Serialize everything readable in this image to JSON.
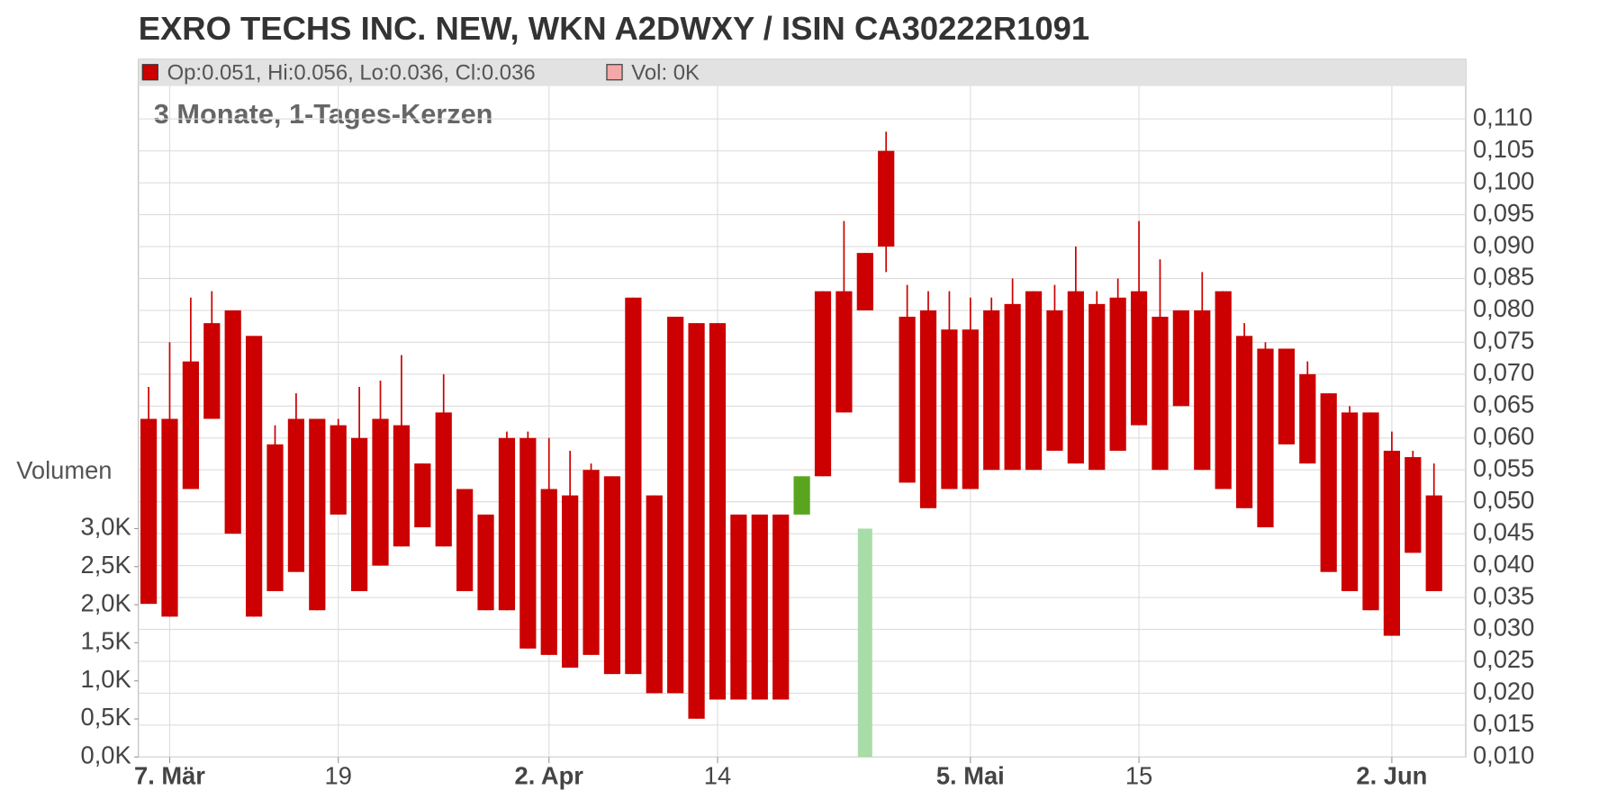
{
  "chart_data": {
    "type": "candlestick",
    "title": "EXRO TECHS INC. NEW, WKN A2DWXY / ISIN CA30222R1091",
    "subtitle": "3 Monate, 1-Tages-Kerzen",
    "legend_items": [
      "Op:0.051, Hi:0.056, Lo:0.036, Cl:0.036",
      "Vol: 0K"
    ],
    "y2_label": "Volumen",
    "categories": [
      null,
      "7. Mär",
      null,
      null,
      null,
      null,
      null,
      null,
      null,
      "19",
      null,
      null,
      null,
      null,
      null,
      null,
      null,
      null,
      null,
      "2. Apr",
      null,
      null,
      null,
      null,
      null,
      null,
      null,
      "14",
      null,
      null,
      null,
      null,
      null,
      null,
      null,
      null,
      null,
      null,
      null,
      "5. Mai",
      null,
      null,
      null,
      null,
      null,
      null,
      null,
      "15",
      null,
      null,
      null,
      null,
      null,
      null,
      null,
      null,
      null,
      null,
      null,
      "2. Jun",
      null,
      null
    ],
    "series": [
      {
        "name": "Kurs",
        "up_color": "#5aa520",
        "down_color": "#cc0000",
        "open": [
          0.063,
          0.063,
          0.072,
          0.078,
          0.08,
          0.076,
          0.059,
          0.063,
          0.063,
          0.062,
          0.06,
          0.063,
          0.062,
          0.056,
          0.064,
          0.052,
          0.048,
          0.06,
          0.06,
          0.052,
          0.051,
          0.055,
          0.054,
          0.082,
          0.051,
          0.079,
          0.078,
          0.078,
          0.048,
          0.048,
          0.048,
          0.048,
          0.083,
          0.083,
          0.089,
          0.105,
          0.079,
          0.08,
          0.077,
          0.077,
          0.08,
          0.081,
          0.083,
          0.08,
          0.083,
          0.081,
          0.082,
          0.083,
          0.079,
          0.08,
          0.08,
          0.083,
          0.076,
          0.074,
          0.074,
          0.07,
          0.067,
          0.064,
          0.064,
          0.058,
          0.057,
          0.051
        ],
        "high": [
          0.068,
          0.075,
          0.082,
          0.083,
          0.08,
          0.076,
          0.062,
          0.067,
          0.063,
          0.063,
          0.068,
          0.069,
          0.073,
          0.056,
          0.07,
          0.052,
          0.048,
          0.061,
          0.061,
          0.06,
          0.058,
          0.056,
          0.054,
          0.082,
          0.051,
          0.079,
          0.078,
          0.078,
          0.048,
          0.048,
          0.048,
          0.054,
          0.083,
          0.094,
          0.089,
          0.108,
          0.084,
          0.083,
          0.083,
          0.082,
          0.082,
          0.085,
          0.083,
          0.084,
          0.09,
          0.083,
          0.085,
          0.094,
          0.088,
          0.08,
          0.086,
          0.083,
          0.078,
          0.075,
          0.074,
          0.072,
          0.067,
          0.065,
          0.064,
          0.061,
          0.058,
          0.056
        ],
        "low": [
          0.034,
          0.032,
          0.052,
          0.063,
          0.045,
          0.032,
          0.036,
          0.039,
          0.033,
          0.048,
          0.036,
          0.04,
          0.043,
          0.046,
          0.043,
          0.036,
          0.033,
          0.033,
          0.027,
          0.026,
          0.024,
          0.026,
          0.023,
          0.023,
          0.02,
          0.02,
          0.016,
          0.019,
          0.019,
          0.019,
          0.019,
          0.048,
          0.054,
          0.064,
          0.08,
          0.086,
          0.053,
          0.049,
          0.052,
          0.052,
          0.055,
          0.055,
          0.055,
          0.058,
          0.056,
          0.055,
          0.058,
          0.062,
          0.055,
          0.065,
          0.055,
          0.052,
          0.049,
          0.046,
          0.059,
          0.056,
          0.039,
          0.036,
          0.033,
          0.029,
          0.042,
          0.036
        ],
        "close": [
          0.034,
          0.032,
          0.052,
          0.063,
          0.045,
          0.032,
          0.036,
          0.039,
          0.033,
          0.048,
          0.036,
          0.04,
          0.043,
          0.046,
          0.043,
          0.036,
          0.033,
          0.033,
          0.027,
          0.026,
          0.024,
          0.026,
          0.023,
          0.023,
          0.02,
          0.02,
          0.016,
          0.019,
          0.019,
          0.019,
          0.019,
          0.054,
          0.054,
          0.064,
          0.08,
          0.09,
          0.053,
          0.049,
          0.052,
          0.052,
          0.055,
          0.055,
          0.055,
          0.058,
          0.056,
          0.055,
          0.058,
          0.062,
          0.055,
          0.065,
          0.055,
          0.052,
          0.049,
          0.046,
          0.059,
          0.056,
          0.039,
          0.036,
          0.033,
          0.029,
          0.042,
          0.036
        ]
      },
      {
        "name": "Volumen",
        "axis": "y2",
        "color": "#a8dca8",
        "values": [
          0,
          0,
          0,
          0,
          0,
          0,
          0,
          0,
          0,
          0,
          0,
          0,
          0,
          0,
          0,
          0,
          0,
          0,
          0,
          0,
          0,
          0,
          0,
          0,
          0,
          0,
          0,
          0,
          0,
          0,
          0,
          0,
          0,
          0,
          3.0,
          0,
          0,
          0,
          0,
          0,
          0,
          0,
          0,
          0,
          0,
          0,
          0,
          0,
          0,
          0,
          0,
          0,
          0,
          0,
          0,
          0,
          0,
          0,
          0,
          0,
          0,
          0
        ]
      }
    ],
    "legend_colors": [
      "#cc0000",
      "#f4a8a8"
    ],
    "ylim": [
      0.01,
      0.115
    ],
    "yticks": [
      {
        "value": 0.01,
        "label": "0,010"
      },
      {
        "value": 0.015,
        "label": "0,015"
      },
      {
        "value": 0.02,
        "label": "0,020"
      },
      {
        "value": 0.025,
        "label": "0,025"
      },
      {
        "value": 0.03,
        "label": "0,030"
      },
      {
        "value": 0.035,
        "label": "0,035"
      },
      {
        "value": 0.04,
        "label": "0,040"
      },
      {
        "value": 0.045,
        "label": "0,045"
      },
      {
        "value": 0.05,
        "label": "0,050"
      },
      {
        "value": 0.055,
        "label": "0,055"
      },
      {
        "value": 0.06,
        "label": "0,060"
      },
      {
        "value": 0.065,
        "label": "0,065"
      },
      {
        "value": 0.07,
        "label": "0,070"
      },
      {
        "value": 0.075,
        "label": "0,075"
      },
      {
        "value": 0.08,
        "label": "0,080"
      },
      {
        "value": 0.085,
        "label": "0,085"
      },
      {
        "value": 0.09,
        "label": "0,090"
      },
      {
        "value": 0.095,
        "label": "0,095"
      },
      {
        "value": 0.1,
        "label": "0,100"
      },
      {
        "value": 0.105,
        "label": "0,105"
      },
      {
        "value": 0.11,
        "label": "0,110"
      }
    ],
    "y2lim": [
      0,
      3.0
    ],
    "y2ticks": [
      {
        "value": 0,
        "label": "0,0K"
      },
      {
        "value": 0.5,
        "label": "0,5K"
      },
      {
        "value": 1.0,
        "label": "1,0K"
      },
      {
        "value": 1.5,
        "label": "1,5K"
      },
      {
        "value": 2.0,
        "label": "2,0K"
      },
      {
        "value": 2.5,
        "label": "2,5K"
      },
      {
        "value": 3.0,
        "label": "3,0K"
      }
    ],
    "grid": true
  }
}
